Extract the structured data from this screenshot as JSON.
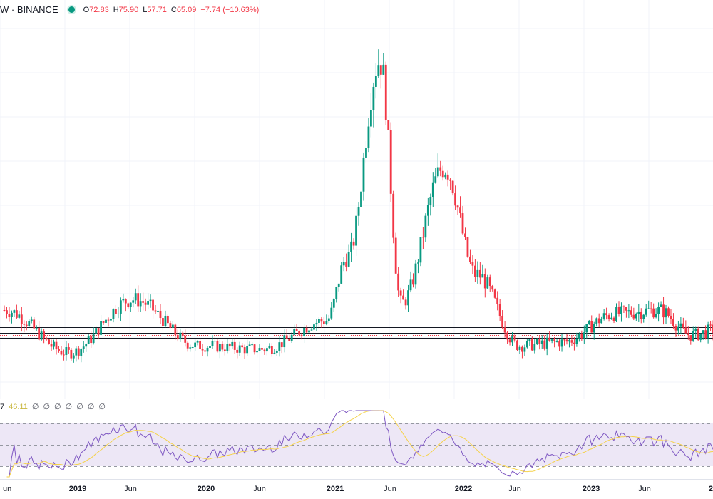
{
  "header": {
    "symbol": "W · BINANCE",
    "open_label": "O",
    "open": "72.83",
    "high_label": "H",
    "high": "75.90",
    "low_label": "L",
    "low": "57.71",
    "close_label": "C",
    "close": "65.09",
    "change": "−7.74 (−10.63%)",
    "status_color": "#089981"
  },
  "rsi": {
    "header_prefix": "7",
    "value": "46.11",
    "hidden_values": [
      "∅",
      "∅",
      "∅",
      "∅",
      "∅",
      "∅",
      "∅"
    ]
  },
  "colors": {
    "up": "#089981",
    "down": "#f23645",
    "rsi_line": "#7e57c2",
    "rsi_ma": "#f5d24a",
    "band": "#ede7f6"
  },
  "time_axis": {
    "labels": [
      {
        "text": "un",
        "year": false
      },
      {
        "text": "2019",
        "year": true
      },
      {
        "text": "Jun",
        "year": false
      },
      {
        "text": "2020",
        "year": true
      },
      {
        "text": "Jun",
        "year": false
      },
      {
        "text": "2021",
        "year": true
      },
      {
        "text": "Jun",
        "year": false
      },
      {
        "text": "2022",
        "year": true
      },
      {
        "text": "Jun",
        "year": false
      },
      {
        "text": "2023",
        "year": true
      },
      {
        "text": "Jun",
        "year": false
      },
      {
        "text": "2",
        "year": true
      }
    ]
  },
  "chart_data": {
    "type": "candlestick",
    "horizontal_levels": [
      55.5,
      50.2,
      48.7,
      47.2,
      45.0,
      42.8
    ],
    "key_points": [
      {
        "date": "2018-06",
        "price": 55
      },
      {
        "date": "2018-12",
        "price": 43
      },
      {
        "date": "2019-06",
        "price": 58
      },
      {
        "date": "2019-12",
        "price": 45
      },
      {
        "date": "2020-06",
        "price": 44
      },
      {
        "date": "2020-12",
        "price": 52
      },
      {
        "date": "2021-02",
        "price": 70
      },
      {
        "date": "2021-05",
        "price": 125
      },
      {
        "date": "2021-07",
        "price": 57
      },
      {
        "date": "2021-11",
        "price": 95
      },
      {
        "date": "2022-02",
        "price": 65
      },
      {
        "date": "2022-06",
        "price": 45
      },
      {
        "date": "2022-10",
        "price": 46
      },
      {
        "date": "2023-03",
        "price": 54
      },
      {
        "date": "2023-07",
        "price": 55
      },
      {
        "date": "2023-10",
        "price": 48
      },
      {
        "date": "2024-01",
        "price": 50
      }
    ],
    "rsi_bands": [
      70,
      50,
      30
    ]
  }
}
